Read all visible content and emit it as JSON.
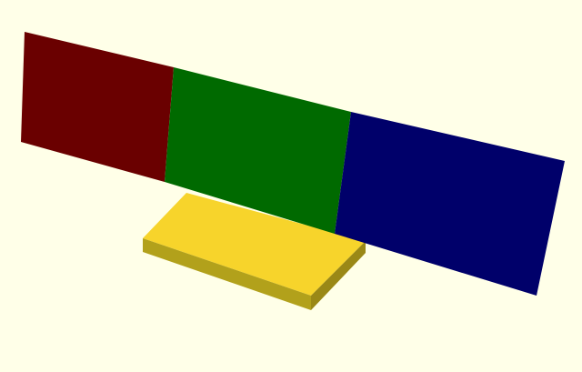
{
  "viewport": {
    "background": "#ffffe8"
  },
  "scene": {
    "panels": [
      {
        "name": "red",
        "color": "#6a0000"
      },
      {
        "name": "green",
        "color": "#006a00"
      },
      {
        "name": "blue",
        "color": "#00006a"
      }
    ],
    "base": {
      "top_color": "#f7d42b",
      "front_color": "#b2a11b",
      "side_color": "#9a8816"
    }
  }
}
